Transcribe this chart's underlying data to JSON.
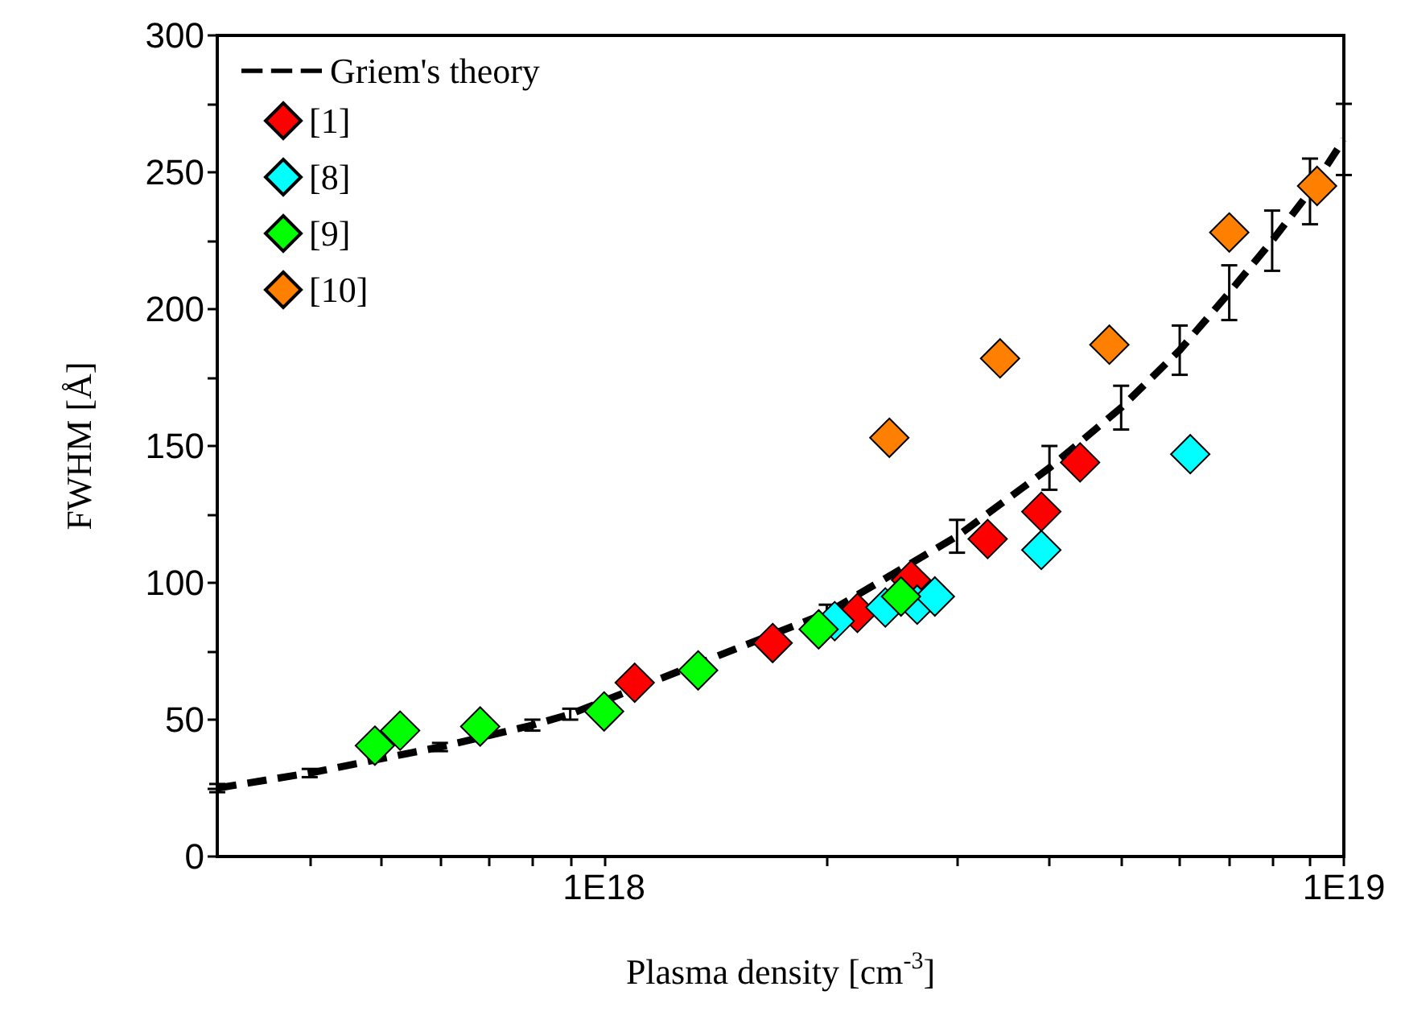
{
  "chart_data": {
    "type": "scatter",
    "xlabel": "Plasma density [cm$^{-3}$]",
    "ylabel": "FWHM [Å]",
    "log": "x",
    "grid": false,
    "legend": "top left",
    "marker": "diamond",
    "xlim": [
      3e+17,
      1e+19
    ],
    "ylim": [
      0,
      300
    ],
    "xticks": [
      {
        "value": 4e+17,
        "label": null
      },
      {
        "value": 5e+17,
        "label": null
      },
      {
        "value": 6e+17,
        "label": null
      },
      {
        "value": 7e+17,
        "label": null
      },
      {
        "value": 8e+17,
        "label": null
      },
      {
        "value": 9e+17,
        "label": null
      },
      {
        "value": 1e+18,
        "label": "1E18"
      },
      {
        "value": 2e+18,
        "label": null
      },
      {
        "value": 3e+18,
        "label": null
      },
      {
        "value": 4e+18,
        "label": null
      },
      {
        "value": 5e+18,
        "label": null
      },
      {
        "value": 6e+18,
        "label": null
      },
      {
        "value": 7e+18,
        "label": null
      },
      {
        "value": 8e+18,
        "label": null
      },
      {
        "value": 9e+18,
        "label": null
      },
      {
        "value": 1e+19,
        "label": "1E19"
      }
    ],
    "yticks": [
      0,
      {
        "value": 25,
        "label": null
      },
      50,
      {
        "value": 75,
        "label": null
      },
      100,
      {
        "value": 125,
        "label": null
      },
      150,
      {
        "value": 175,
        "label": null
      },
      200,
      {
        "value": 225,
        "label": null
      },
      250,
      {
        "value": 275,
        "label": null
      },
      300
    ],
    "series": [
      {
        "name": "Griem's theory",
        "type": "line",
        "marker": "none",
        "line_style": "dashed",
        "color": "#000000",
        "x": [
          3e+17,
          4e+17,
          6e+17,
          8e+17,
          9e+17,
          2e+18,
          3e+18,
          4e+18,
          5e+18,
          6e+18,
          7e+18,
          8e+18,
          9e+18,
          1e+19
        ],
        "values": [
          25,
          30.5,
          40,
          48,
          52,
          89,
          117,
          142,
          164,
          185,
          206,
          225,
          243,
          262
        ],
        "errors": [
          1.5,
          1.5,
          1.5,
          2,
          2,
          3,
          6,
          8,
          8,
          9,
          10,
          11,
          12,
          13
        ]
      },
      {
        "name": "[1]",
        "color": "#ff0000",
        "x": [
          1.1e+18,
          1.69e+18,
          2.2e+18,
          2.6e+18,
          3.3e+18,
          3.9e+18,
          4.4e+18
        ],
        "values": [
          63.5,
          78,
          89,
          101,
          116,
          126,
          144
        ]
      },
      {
        "name": "[8]",
        "color": "#00ffff",
        "x": [
          2.05e+18,
          2.4e+18,
          2.65e+18,
          2.8e+18,
          3.9e+18,
          6.2e+18
        ],
        "values": [
          86,
          91,
          92,
          95,
          112,
          147
        ]
      },
      {
        "name": "[9]",
        "color": "#00ff00",
        "x": [
          4.9e+17,
          5.3e+17,
          6.8e+17,
          1e+18,
          1.34e+18,
          1.95e+18,
          2.52e+18
        ],
        "values": [
          40.5,
          46,
          47.5,
          53,
          68,
          83,
          95
        ]
      },
      {
        "name": "[10]",
        "color": "#ff8000",
        "x": [
          2.43e+18,
          3.43e+18,
          4.82e+18,
          7e+18,
          9.2e+18
        ],
        "values": [
          153,
          182,
          187,
          228,
          245
        ]
      }
    ]
  }
}
